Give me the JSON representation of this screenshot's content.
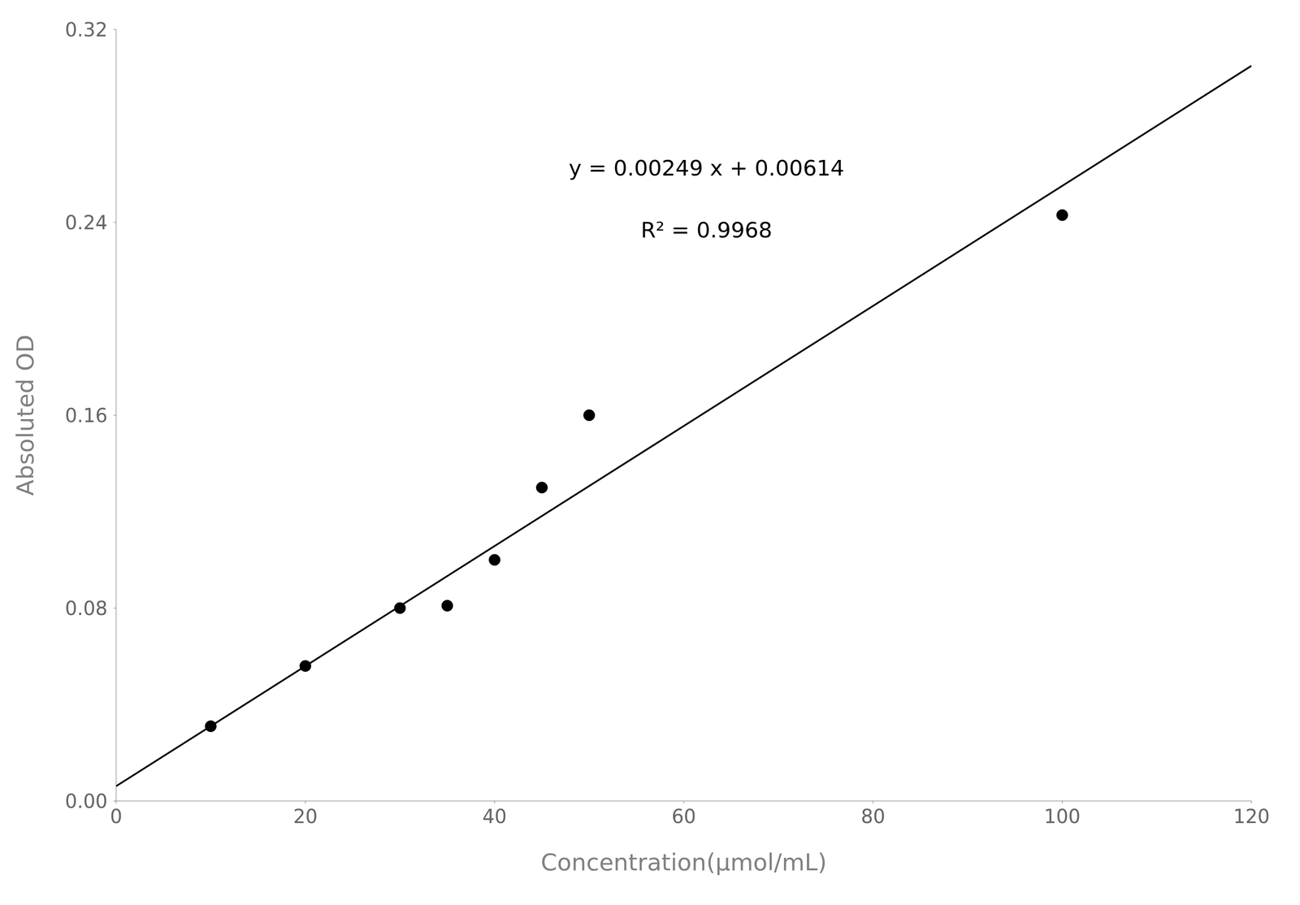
{
  "chart_data": {
    "type": "scatter",
    "xlabel": "Concentration(μmol/mL)",
    "ylabel": "Absoluted OD",
    "annotations": [
      "y = 0.00249 x + 0.00614",
      "R² = 0.9968"
    ],
    "series": [
      {
        "type": "scatter",
        "marker": "circle",
        "color": "#000000",
        "x": [
          10,
          20,
          30,
          35,
          40,
          45,
          50,
          100
        ],
        "values": [
          0.031,
          0.056,
          0.08,
          0.081,
          0.1,
          0.13,
          0.16,
          0.243
        ]
      },
      {
        "type": "line",
        "line_style": "solid",
        "color": "#000000",
        "x": [
          0,
          120
        ],
        "values": [
          0.00614,
          0.30494
        ]
      }
    ],
    "xlim": [
      0,
      120
    ],
    "ylim": [
      0,
      0.32
    ],
    "xticks": [
      0,
      20,
      40,
      60,
      80,
      100,
      120
    ],
    "yticks": [
      {
        "value": 0,
        "label": "0.00"
      },
      0.08,
      0.16,
      0.24,
      0.32
    ],
    "grid": false
  }
}
